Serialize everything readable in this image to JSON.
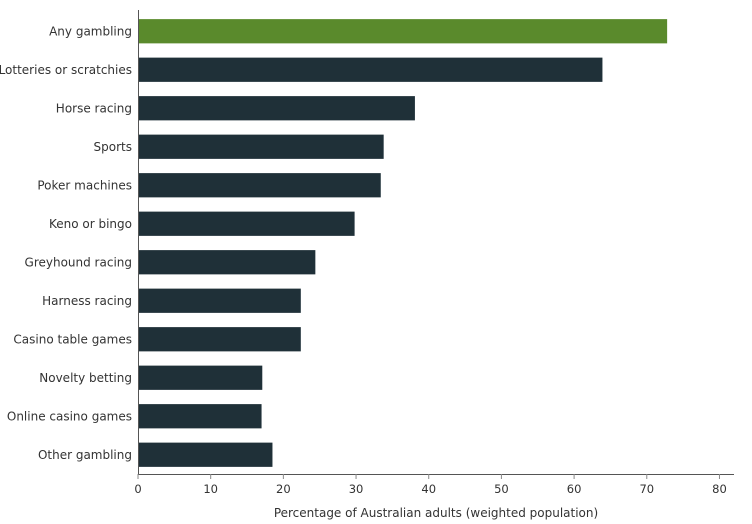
{
  "chart_data": {
    "type": "bar",
    "orientation": "horizontal",
    "categories": [
      "Any gambling",
      "Lotteries or scratchies",
      "Horse racing",
      "Sports",
      "Poker machines",
      "Keno or bingo",
      "Greyhound racing",
      "Harness racing",
      "Casino table games",
      "Novelty betting",
      "Online casino games",
      "Other gambling"
    ],
    "values": [
      72.8,
      63.9,
      38.1,
      33.8,
      33.4,
      29.8,
      24.4,
      22.4,
      22.4,
      17.1,
      17.0,
      18.5
    ],
    "highlight_index": 0,
    "colors": {
      "highlight": "#5a8a2c",
      "bar": "#1f3038",
      "axis": "#555555",
      "tick": "#888888"
    },
    "xlabel": "Percentage of Australian adults (weighted population)",
    "xlim": [
      0,
      82
    ],
    "xticks": [
      "0",
      "10",
      "20",
      "30",
      "40",
      "50",
      "60",
      "70",
      "80"
    ],
    "grid": false
  }
}
